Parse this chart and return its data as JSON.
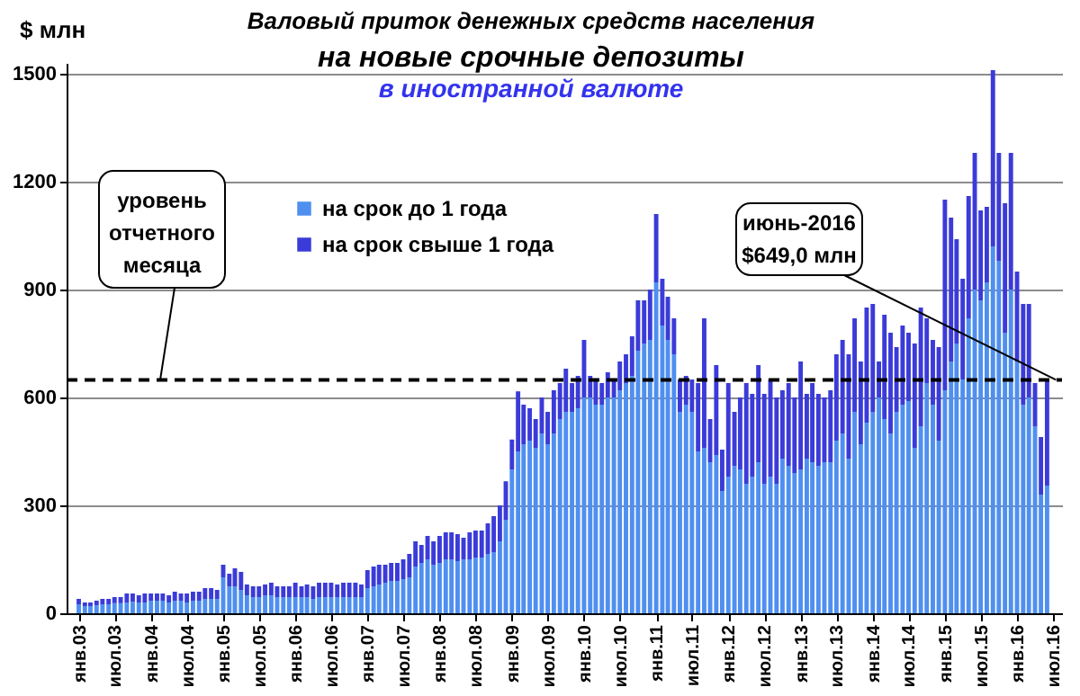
{
  "chart_data": {
    "type": "bar",
    "stacked": true,
    "title": "Валовый приток денежных средств населения",
    "subtitle": "на новые срочные депозиты\nв иностранной валюте",
    "ylabel": "$ млн",
    "x": [
      "2003-01",
      "2003-02",
      "2003-03",
      "2003-04",
      "2003-05",
      "2003-06",
      "2003-07",
      "2003-08",
      "2003-09",
      "2003-10",
      "2003-11",
      "2003-12",
      "2004-01",
      "2004-02",
      "2004-03",
      "2004-04",
      "2004-05",
      "2004-06",
      "2004-07",
      "2004-08",
      "2004-09",
      "2004-10",
      "2004-11",
      "2004-12",
      "2005-01",
      "2005-02",
      "2005-03",
      "2005-04",
      "2005-05",
      "2005-06",
      "2005-07",
      "2005-08",
      "2005-09",
      "2005-10",
      "2005-11",
      "2005-12",
      "2006-01",
      "2006-02",
      "2006-03",
      "2006-04",
      "2006-05",
      "2006-06",
      "2006-07",
      "2006-08",
      "2006-09",
      "2006-10",
      "2006-11",
      "2006-12",
      "2007-01",
      "2007-02",
      "2007-03",
      "2007-04",
      "2007-05",
      "2007-06",
      "2007-07",
      "2007-08",
      "2007-09",
      "2007-10",
      "2007-11",
      "2007-12",
      "2008-01",
      "2008-02",
      "2008-03",
      "2008-04",
      "2008-05",
      "2008-06",
      "2008-07",
      "2008-08",
      "2008-09",
      "2008-10",
      "2008-11",
      "2008-12",
      "2009-01",
      "2009-02",
      "2009-03",
      "2009-04",
      "2009-05",
      "2009-06",
      "2009-07",
      "2009-08",
      "2009-09",
      "2009-10",
      "2009-11",
      "2009-12",
      "2010-01",
      "2010-02",
      "2010-03",
      "2010-04",
      "2010-05",
      "2010-06",
      "2010-07",
      "2010-08",
      "2010-09",
      "2010-10",
      "2010-11",
      "2010-12",
      "2011-01",
      "2011-02",
      "2011-03",
      "2011-04",
      "2011-05",
      "2011-06",
      "2011-07",
      "2011-08",
      "2011-09",
      "2011-10",
      "2011-11",
      "2011-12",
      "2012-01",
      "2012-02",
      "2012-03",
      "2012-04",
      "2012-05",
      "2012-06",
      "2012-07",
      "2012-08",
      "2012-09",
      "2012-10",
      "2012-11",
      "2012-12",
      "2013-01",
      "2013-02",
      "2013-03",
      "2013-04",
      "2013-05",
      "2013-06",
      "2013-07",
      "2013-08",
      "2013-09",
      "2013-10",
      "2013-11",
      "2013-12",
      "2014-01",
      "2014-02",
      "2014-03",
      "2014-04",
      "2014-05",
      "2014-06",
      "2014-07",
      "2014-08",
      "2014-09",
      "2014-10",
      "2014-11",
      "2014-12",
      "2015-01",
      "2015-02",
      "2015-03",
      "2015-04",
      "2015-05",
      "2015-06",
      "2015-07",
      "2015-08",
      "2015-09",
      "2015-10",
      "2015-11",
      "2015-12",
      "2016-01",
      "2016-02",
      "2016-03",
      "2016-04",
      "2016-05",
      "2016-06"
    ],
    "series": [
      {
        "name": "на срок до 1 года",
        "color": "#4f8ff0",
        "values": [
          25,
          20,
          20,
          22,
          25,
          25,
          28,
          28,
          30,
          32,
          30,
          30,
          35,
          35,
          35,
          30,
          35,
          35,
          30,
          35,
          35,
          40,
          40,
          40,
          100,
          75,
          75,
          65,
          50,
          45,
          45,
          50,
          50,
          45,
          45,
          45,
          45,
          45,
          45,
          40,
          45,
          45,
          45,
          45,
          45,
          45,
          45,
          45,
          70,
          75,
          80,
          85,
          90,
          90,
          95,
          100,
          130,
          140,
          150,
          135,
          140,
          150,
          150,
          145,
          150,
          150,
          155,
          155,
          165,
          170,
          200,
          260,
          400,
          450,
          470,
          480,
          460,
          500,
          470,
          500,
          540,
          560,
          560,
          570,
          600,
          600,
          580,
          580,
          600,
          600,
          620,
          640,
          660,
          730,
          750,
          760,
          920,
          800,
          760,
          720,
          560,
          580,
          560,
          450,
          460,
          420,
          440,
          340,
          380,
          410,
          400,
          360,
          380,
          420,
          360,
          380,
          360,
          430,
          410,
          390,
          400,
          430,
          420,
          410,
          420,
          420,
          480,
          500,
          430,
          560,
          470,
          530,
          560,
          600,
          540,
          500,
          560,
          580,
          590,
          460,
          520,
          640,
          580,
          480,
          620,
          700,
          750,
          650,
          820,
          900,
          870,
          920,
          1020,
          980,
          780,
          900,
          700,
          580,
          600,
          520,
          330,
          355
        ]
      },
      {
        "name": "на срок свыше 1 года",
        "color": "#3b3bd9",
        "values": [
          15,
          10,
          10,
          13,
          15,
          15,
          17,
          17,
          25,
          23,
          20,
          25,
          20,
          20,
          20,
          20,
          25,
          20,
          25,
          25,
          25,
          30,
          30,
          25,
          35,
          35,
          50,
          50,
          30,
          30,
          30,
          30,
          35,
          30,
          30,
          30,
          40,
          30,
          35,
          35,
          40,
          40,
          40,
          35,
          40,
          40,
          40,
          35,
          50,
          55,
          55,
          50,
          50,
          50,
          55,
          65,
          70,
          50,
          65,
          65,
          75,
          75,
          75,
          75,
          60,
          75,
          75,
          75,
          85,
          100,
          100,
          107,
          83,
          167,
          110,
          90,
          80,
          100,
          90,
          120,
          100,
          120,
          80,
          90,
          160,
          60,
          70,
          60,
          70,
          50,
          80,
          80,
          110,
          140,
          120,
          140,
          190,
          130,
          120,
          100,
          90,
          80,
          90,
          190,
          360,
          120,
          250,
          115,
          260,
          150,
          200,
          280,
          230,
          270,
          250,
          270,
          240,
          190,
          230,
          210,
          300,
          180,
          220,
          200,
          180,
          200,
          240,
          260,
          290,
          260,
          230,
          320,
          300,
          100,
          290,
          280,
          180,
          220,
          190,
          290,
          330,
          180,
          180,
          260,
          530,
          400,
          290,
          280,
          340,
          380,
          250,
          210,
          490,
          300,
          360,
          380,
          250,
          280,
          260,
          120,
          160,
          294
        ]
      }
    ],
    "ylim": [
      0,
      1530
    ],
    "yticks": [
      0,
      300,
      600,
      900,
      1200,
      1500
    ],
    "xlim": [
      "2002-12-16",
      "2016-07-01"
    ],
    "xticks": [
      {
        "value": "2003-01",
        "label": "янв.03"
      },
      {
        "value": "2003-07",
        "label": "июл.03"
      },
      {
        "value": "2004-01",
        "label": "янв.04"
      },
      {
        "value": "2004-07",
        "label": "июл.04"
      },
      {
        "value": "2005-01",
        "label": "янв.05"
      },
      {
        "value": "2005-07",
        "label": "июл.05"
      },
      {
        "value": "2006-01",
        "label": "янв.06"
      },
      {
        "value": "2006-07",
        "label": "июл.06"
      },
      {
        "value": "2007-01",
        "label": "янв.07"
      },
      {
        "value": "2007-07",
        "label": "июл.07"
      },
      {
        "value": "2008-01",
        "label": "янв.08"
      },
      {
        "value": "2008-07",
        "label": "июл.08"
      },
      {
        "value": "2009-01",
        "label": "янв.09"
      },
      {
        "value": "2009-07",
        "label": "июл.09"
      },
      {
        "value": "2010-01",
        "label": "янв.10"
      },
      {
        "value": "2010-07",
        "label": "июл.10"
      },
      {
        "value": "2011-01",
        "label": "янв.11"
      },
      {
        "value": "2011-07",
        "label": "июл.11"
      },
      {
        "value": "2012-01",
        "label": "янв.12"
      },
      {
        "value": "2012-07",
        "label": "июл.12"
      },
      {
        "value": "2013-01",
        "label": "янв.13"
      },
      {
        "value": "2013-07",
        "label": "июл.13"
      },
      {
        "value": "2014-01",
        "label": "янв.14"
      },
      {
        "value": "2014-07",
        "label": "июл.14"
      },
      {
        "value": "2015-01",
        "label": "янв.15"
      },
      {
        "value": "2015-07",
        "label": "июл.15"
      },
      {
        "value": "2016-01",
        "label": "янв.16"
      },
      {
        "value": "2016-07",
        "label": "июл.16"
      }
    ],
    "grid": "y",
    "legend": "top left",
    "ref_lines": [
      {
        "axis": "y",
        "value": 649,
        "label": "уровень отчетного месяца",
        "line_style": "dashed",
        "color": "#000000"
      }
    ],
    "annotations": [
      {
        "text": "июнь-2016\n$649,0 млн",
        "x": "2016-06",
        "y": 649
      }
    ]
  }
}
